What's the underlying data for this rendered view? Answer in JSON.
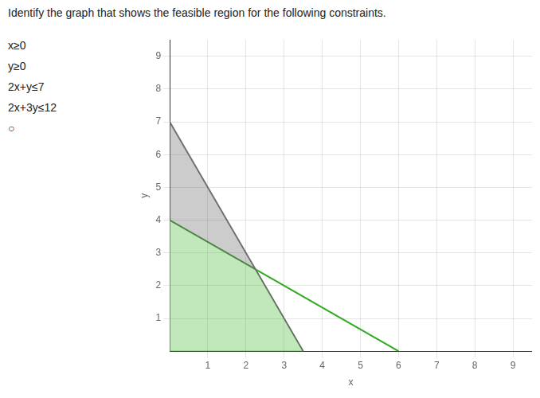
{
  "chart_data": {
    "type": "scatter",
    "title": "Identify the graph that shows the feasible region for the following constraints.",
    "annotations": [
      "x≥0",
      "y≥0",
      "2x+y≤7",
      "2x+3y≤12",
      "○"
    ],
    "xlabel": "x",
    "ylabel": "y",
    "series": [
      {
        "type": "area",
        "color": "#666666",
        "x": [
          0,
          0,
          3.5,
          2.25
        ],
        "values": [
          4,
          7,
          0,
          2.5
        ]
      },
      {
        "type": "area",
        "color": "#44bb33",
        "x": [
          0,
          3.5,
          2.25,
          0
        ],
        "values": [
          0,
          0,
          2.5,
          4
        ]
      },
      {
        "type": "line",
        "color": "#888888",
        "x": [
          0,
          3.5
        ],
        "values": [
          7,
          0
        ]
      },
      {
        "type": "line",
        "color": "#33aa22",
        "x": [
          0,
          6
        ],
        "values": [
          4,
          0
        ]
      }
    ],
    "xlim": [
      0,
      9.5
    ],
    "ylim": [
      0,
      9.5
    ],
    "xticks": [
      1,
      2,
      3,
      4,
      5,
      6,
      7,
      8,
      9
    ],
    "yticks": [
      1,
      2,
      3,
      4,
      5,
      6,
      7,
      8,
      9
    ],
    "grid": true
  }
}
